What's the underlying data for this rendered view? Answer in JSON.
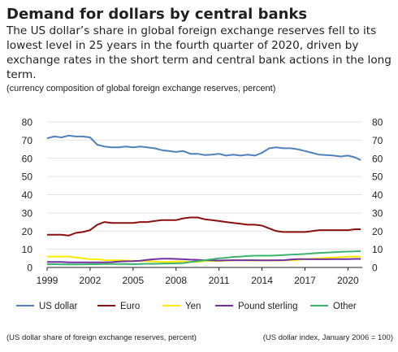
{
  "header": {
    "title": "Demand for dollars by central banks",
    "subtitle": "The US dollar’s share in global foreign exchange reserves fell to its lowest level in 25 years in the fourth quarter of 2020, driven by exchange rates in the short term and central bank actions in the long term.",
    "note": "(currency composition of global foreign exchange reserves, percent)"
  },
  "footer": {
    "left_note": "(US dollar share of foreign exchange reserves, percent)",
    "right_note": "(US dollar index, January 2006 = 100)"
  },
  "chart_data": {
    "type": "line",
    "x_ticks": [
      "1999",
      "2002",
      "2005",
      "2008",
      "2011",
      "2014",
      "2017",
      "2020"
    ],
    "x_range": [
      1999,
      2021
    ],
    "ylim": [
      0,
      80
    ],
    "y_ticks": [
      0,
      10,
      20,
      30,
      40,
      50,
      60,
      70,
      80
    ],
    "y_right_ticks": [
      0,
      10,
      20,
      30,
      40,
      50,
      60,
      70,
      80
    ],
    "grid": "horizontal",
    "legend_position": "bottom",
    "series": [
      {
        "name": "US dollar",
        "color": "#4f81bd",
        "x": [
          1999.0,
          1999.5,
          2000.0,
          2000.5,
          2001.0,
          2001.5,
          2002.0,
          2002.5,
          2003.0,
          2003.5,
          2004.0,
          2004.5,
          2005.0,
          2005.5,
          2006.0,
          2006.5,
          2007.0,
          2007.5,
          2008.0,
          2008.5,
          2009.0,
          2009.5,
          2010.0,
          2010.5,
          2011.0,
          2011.5,
          2012.0,
          2012.5,
          2013.0,
          2013.5,
          2014.0,
          2014.5,
          2015.0,
          2015.5,
          2016.0,
          2016.5,
          2017.0,
          2017.5,
          2018.0,
          2018.5,
          2019.0,
          2019.5,
          2020.0,
          2020.5,
          2020.9
        ],
        "values": [
          71.0,
          72.0,
          71.5,
          72.5,
          72.0,
          72.0,
          71.5,
          67.5,
          66.5,
          66.0,
          66.0,
          66.5,
          66.0,
          66.5,
          66.0,
          65.5,
          64.5,
          64.0,
          63.5,
          64.0,
          62.5,
          62.5,
          61.8,
          62.0,
          62.5,
          61.5,
          62.0,
          61.5,
          62.0,
          61.5,
          63.0,
          65.5,
          66.0,
          65.5,
          65.5,
          65.0,
          64.0,
          63.0,
          62.0,
          61.8,
          61.5,
          61.0,
          61.5,
          60.5,
          59.0
        ]
      },
      {
        "name": "Euro",
        "color": "#8b1010",
        "x": [
          1999.0,
          1999.5,
          2000.0,
          2000.5,
          2001.0,
          2001.5,
          2002.0,
          2002.5,
          2003.0,
          2003.5,
          2004.0,
          2004.5,
          2005.0,
          2005.5,
          2006.0,
          2006.5,
          2007.0,
          2007.5,
          2008.0,
          2008.5,
          2009.0,
          2009.5,
          2010.0,
          2010.5,
          2011.0,
          2011.5,
          2012.0,
          2012.5,
          2013.0,
          2013.5,
          2014.0,
          2014.5,
          2015.0,
          2015.5,
          2016.0,
          2016.5,
          2017.0,
          2017.5,
          2018.0,
          2018.5,
          2019.0,
          2019.5,
          2020.0,
          2020.5,
          2020.9
        ],
        "values": [
          18.0,
          18.0,
          18.0,
          17.5,
          19.0,
          19.5,
          20.5,
          23.5,
          25.0,
          24.5,
          24.5,
          24.5,
          24.5,
          25.0,
          25.0,
          25.5,
          26.0,
          26.0,
          26.0,
          27.0,
          27.5,
          27.5,
          26.5,
          26.0,
          25.5,
          25.0,
          24.5,
          24.0,
          23.5,
          23.5,
          23.0,
          21.5,
          20.0,
          19.5,
          19.5,
          19.5,
          19.5,
          20.0,
          20.5,
          20.5,
          20.5,
          20.5,
          20.5,
          21.0,
          21.0
        ]
      },
      {
        "name": "Yen",
        "color": "#ffeb00",
        "x": [
          1999.0,
          1999.5,
          2000.0,
          2000.5,
          2001.0,
          2001.5,
          2002.0,
          2002.5,
          2003.0,
          2003.5,
          2004.0,
          2004.5,
          2005.0,
          2005.5,
          2006.0,
          2006.5,
          2007.0,
          2007.5,
          2008.0,
          2008.5,
          2009.0,
          2009.5,
          2010.0,
          2010.5,
          2011.0,
          2011.5,
          2012.0,
          2012.5,
          2013.0,
          2013.5,
          2014.0,
          2014.5,
          2015.0,
          2015.5,
          2016.0,
          2016.5,
          2017.0,
          2017.5,
          2018.0,
          2018.5,
          2019.0,
          2019.5,
          2020.0,
          2020.5,
          2020.9
        ],
        "values": [
          6.0,
          6.0,
          6.0,
          6.0,
          5.5,
          5.0,
          4.5,
          4.5,
          4.0,
          4.0,
          4.0,
          3.8,
          3.7,
          3.5,
          3.5,
          3.2,
          3.1,
          3.0,
          3.3,
          3.2,
          3.0,
          3.0,
          3.5,
          3.6,
          3.5,
          3.8,
          4.0,
          4.0,
          4.0,
          3.8,
          3.9,
          3.9,
          3.8,
          3.9,
          4.0,
          4.2,
          4.5,
          4.8,
          5.0,
          5.3,
          5.5,
          5.7,
          5.9,
          6.0,
          6.0
        ]
      },
      {
        "name": "Pound sterling",
        "color": "#7030a0",
        "x": [
          1999.0,
          1999.5,
          2000.0,
          2000.5,
          2001.0,
          2001.5,
          2002.0,
          2002.5,
          2003.0,
          2003.5,
          2004.0,
          2004.5,
          2005.0,
          2005.5,
          2006.0,
          2006.5,
          2007.0,
          2007.5,
          2008.0,
          2008.5,
          2009.0,
          2009.5,
          2010.0,
          2010.5,
          2011.0,
          2011.5,
          2012.0,
          2012.5,
          2013.0,
          2013.5,
          2014.0,
          2014.5,
          2015.0,
          2015.5,
          2016.0,
          2016.5,
          2017.0,
          2017.5,
          2018.0,
          2018.5,
          2019.0,
          2019.5,
          2020.0,
          2020.5,
          2020.9
        ],
        "values": [
          3.0,
          3.0,
          3.0,
          2.8,
          2.8,
          2.8,
          2.8,
          2.8,
          2.8,
          2.9,
          3.2,
          3.4,
          3.5,
          3.7,
          4.2,
          4.5,
          4.8,
          4.8,
          4.7,
          4.5,
          4.3,
          4.2,
          4.0,
          3.9,
          3.8,
          3.9,
          4.0,
          4.0,
          4.0,
          4.0,
          3.9,
          3.9,
          4.0,
          4.0,
          4.4,
          4.6,
          4.6,
          4.5,
          4.5,
          4.5,
          4.6,
          4.6,
          4.6,
          4.7,
          4.7
        ]
      },
      {
        "name": "Other",
        "color": "#3cb371",
        "x": [
          1999.0,
          1999.5,
          2000.0,
          2000.5,
          2001.0,
          2001.5,
          2002.0,
          2002.5,
          2003.0,
          2003.5,
          2004.0,
          2004.5,
          2005.0,
          2005.5,
          2006.0,
          2006.5,
          2007.0,
          2007.5,
          2008.0,
          2008.5,
          2009.0,
          2009.5,
          2010.0,
          2010.5,
          2011.0,
          2011.5,
          2012.0,
          2012.5,
          2013.0,
          2013.5,
          2014.0,
          2014.5,
          2015.0,
          2015.5,
          2016.0,
          2016.5,
          2017.0,
          2017.5,
          2018.0,
          2018.5,
          2019.0,
          2019.5,
          2020.0,
          2020.5,
          2020.9
        ],
        "values": [
          1.8,
          1.8,
          1.7,
          1.7,
          1.7,
          1.7,
          1.8,
          1.8,
          1.9,
          1.9,
          1.9,
          1.9,
          1.8,
          1.9,
          2.0,
          2.0,
          2.1,
          2.2,
          2.3,
          2.4,
          3.0,
          3.5,
          4.0,
          4.5,
          5.0,
          5.3,
          5.8,
          6.0,
          6.3,
          6.5,
          6.5,
          6.5,
          6.6,
          6.8,
          7.0,
          7.2,
          7.4,
          7.7,
          8.0,
          8.2,
          8.4,
          8.6,
          8.7,
          8.8,
          9.0
        ]
      }
    ]
  }
}
